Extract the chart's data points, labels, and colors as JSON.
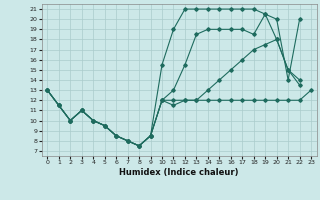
{
  "title": "",
  "xlabel": "Humidex (Indice chaleur)",
  "bg_color": "#cce8e8",
  "line_color": "#1e6b5e",
  "grid_color": "#aacccc",
  "xlim": [
    -0.5,
    23.5
  ],
  "ylim": [
    6.5,
    21.5
  ],
  "xticks": [
    0,
    1,
    2,
    3,
    4,
    5,
    6,
    7,
    8,
    9,
    10,
    11,
    12,
    13,
    14,
    15,
    16,
    17,
    18,
    19,
    20,
    21,
    22,
    23
  ],
  "yticks": [
    7,
    8,
    9,
    10,
    11,
    12,
    13,
    14,
    15,
    16,
    17,
    18,
    19,
    20,
    21
  ],
  "lines": [
    {
      "x": [
        0,
        1,
        2,
        3,
        4,
        5,
        6,
        7,
        8,
        9,
        10,
        11,
        12,
        13,
        14,
        15,
        16,
        17,
        18,
        19,
        20,
        21,
        22,
        23
      ],
      "y": [
        13,
        11.5,
        10,
        11,
        10,
        9.5,
        8.5,
        8,
        7.5,
        8.5,
        12,
        11.5,
        12,
        12,
        12,
        12,
        12,
        12,
        12,
        12,
        12,
        12,
        12,
        13
      ]
    },
    {
      "x": [
        0,
        1,
        2,
        3,
        4,
        5,
        6,
        7,
        8,
        9,
        10,
        11,
        12,
        13,
        14,
        15,
        16,
        17,
        18,
        19,
        20,
        21,
        22
      ],
      "y": [
        13,
        11.5,
        10,
        11,
        10,
        9.5,
        8.5,
        8,
        7.5,
        8.5,
        15.5,
        19,
        21,
        21,
        21,
        21,
        21,
        21,
        21,
        20.5,
        20,
        14,
        20
      ]
    },
    {
      "x": [
        0,
        1,
        2,
        3,
        4,
        5,
        6,
        7,
        8,
        9,
        10,
        11,
        12,
        13,
        14,
        15,
        16,
        17,
        18,
        19,
        20,
        21,
        22
      ],
      "y": [
        13,
        11.5,
        10,
        11,
        10,
        9.5,
        8.5,
        8,
        7.5,
        8.5,
        12,
        13,
        15.5,
        18.5,
        19,
        19,
        19,
        19,
        18.5,
        20.5,
        18,
        15,
        14
      ]
    },
    {
      "x": [
        0,
        1,
        2,
        3,
        4,
        5,
        6,
        7,
        8,
        9,
        10,
        11,
        12,
        13,
        14,
        15,
        16,
        17,
        18,
        19,
        20,
        21,
        22
      ],
      "y": [
        13,
        11.5,
        10,
        11,
        10,
        9.5,
        8.5,
        8,
        7.5,
        8.5,
        12,
        12,
        12,
        12,
        13,
        14,
        15,
        16,
        17,
        17.5,
        18,
        15,
        13.5
      ]
    }
  ]
}
